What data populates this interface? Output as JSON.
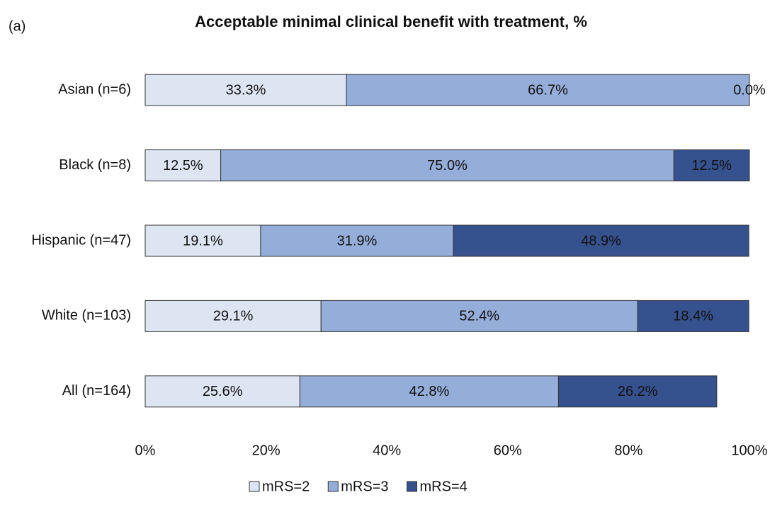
{
  "chart_data": {
    "type": "stacked-barh",
    "panel_label": "(a)",
    "title": "Acceptable minimal clinical benefit with treatment, %",
    "categories": [
      "Asian (n=6)",
      "Black (n=8)",
      "Hispanic (n=47)",
      "White (n=103)",
      "All (n=164)"
    ],
    "series": [
      {
        "name": "mRS=2",
        "color": "#dde5f3",
        "values": [
          33.3,
          12.5,
          19.1,
          29.1,
          25.6
        ],
        "value_labels": [
          "33.3%",
          "12.5%",
          "19.1%",
          "29.1%",
          "25.6%"
        ]
      },
      {
        "name": "mRS=3",
        "color": "#94aed9",
        "values": [
          66.7,
          75.0,
          31.9,
          52.4,
          42.8
        ],
        "value_labels": [
          "66.7%",
          "75.0%",
          "31.9%",
          "52.4%",
          "42.8%"
        ]
      },
      {
        "name": "mRS=4",
        "color": "#35528f",
        "values": [
          0.0,
          12.5,
          48.9,
          18.4,
          26.2
        ],
        "value_labels": [
          "0.0%",
          "12.5%",
          "48.9%",
          "18.4%",
          "26.2%"
        ]
      }
    ],
    "xlim": [
      0,
      100
    ],
    "xticks": [
      {
        "value": 0,
        "label": "0%"
      },
      {
        "value": 20,
        "label": "20%"
      },
      {
        "value": 40,
        "label": "40%"
      },
      {
        "value": 60,
        "label": "60%"
      },
      {
        "value": 80,
        "label": "80%"
      },
      {
        "value": 100,
        "label": "100%"
      }
    ],
    "legend": "bottom"
  }
}
